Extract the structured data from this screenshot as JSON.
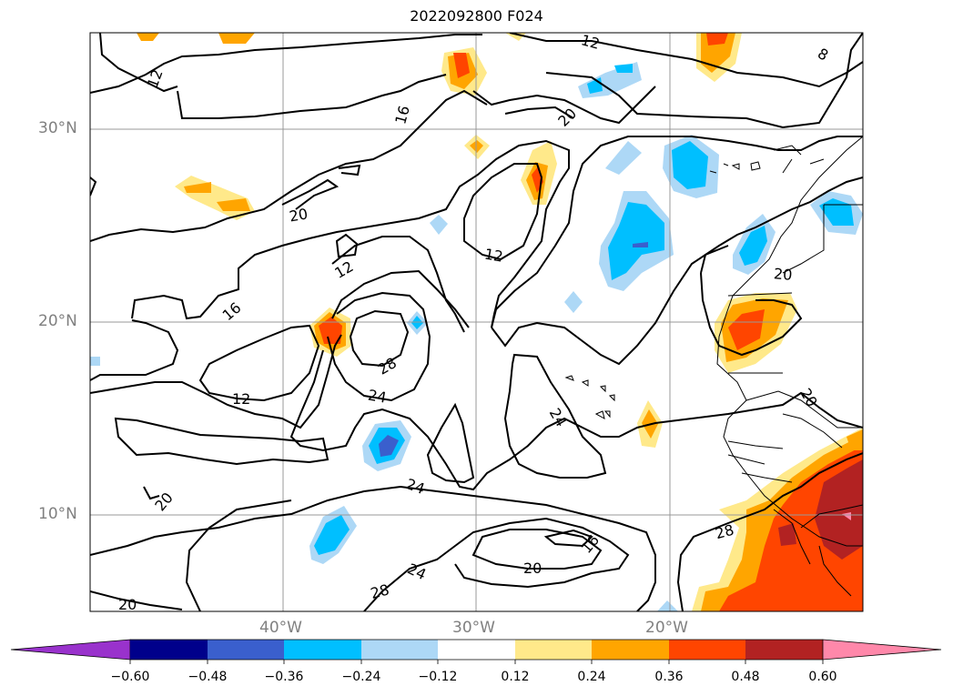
{
  "title": "2022092800 F024",
  "map": {
    "lat_labels": [
      "30°N",
      "20°N",
      "10°N"
    ],
    "lon_labels": [
      "40°W",
      "30°W",
      "20°W"
    ],
    "contour_labels": [
      "12",
      "12",
      "8",
      "16",
      "20",
      "20",
      "12",
      "12",
      "16",
      "20",
      "28",
      "24",
      "12",
      "24",
      "24",
      "24",
      "20",
      "16",
      "28",
      "20",
      "28",
      "20",
      "20"
    ]
  },
  "colorbar": {
    "ticks": [
      "−0.60",
      "−0.48",
      "−0.36",
      "−0.24",
      "−0.12",
      "0.12",
      "0.24",
      "0.36",
      "0.48",
      "0.60"
    ],
    "colors": [
      "#9932cc",
      "#00008b",
      "#3a5fcd",
      "#00bfff",
      "#add8f6",
      "#ffffff",
      "#ffe98a",
      "#ffa500",
      "#ff4500",
      "#b22222",
      "#ff88aa"
    ]
  }
}
